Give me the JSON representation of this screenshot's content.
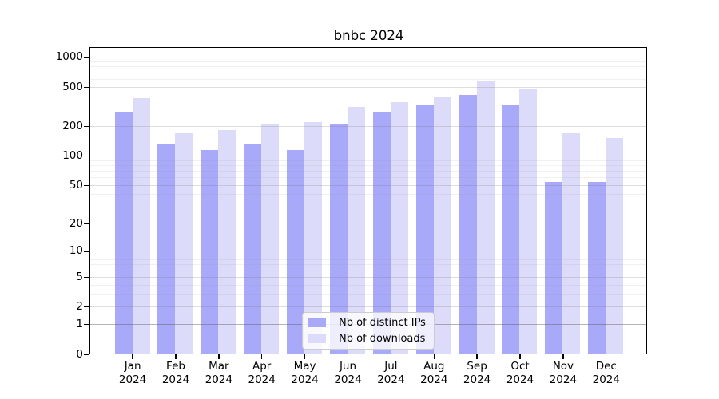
{
  "chart_data": {
    "type": "bar",
    "title": "bnbc 2024",
    "categories": [
      "Jan",
      "Feb",
      "Mar",
      "Apr",
      "May",
      "Jun",
      "Jul",
      "Aug",
      "Sep",
      "Oct",
      "Nov",
      "Dec"
    ],
    "year_label": "2024",
    "series": [
      {
        "name": "Nb of distinct IPs",
        "color": "#a9a9fa",
        "values": [
          285,
          132,
          116,
          134,
          116,
          215,
          285,
          330,
          420,
          330,
          55,
          55
        ]
      },
      {
        "name": "Nb of downloads",
        "color": "#dcdcfa",
        "values": [
          395,
          172,
          185,
          213,
          223,
          320,
          355,
          410,
          595,
          490,
          172,
          155
        ]
      }
    ],
    "yscale": "log1p",
    "ylim": [
      0,
      1270
    ],
    "yticks_labeled": [
      0,
      1,
      2,
      5,
      10,
      20,
      50,
      100,
      200,
      500,
      1000
    ],
    "yticks_major": [
      1,
      10,
      100,
      1000
    ],
    "yticks_minor_unlabeled": [
      3,
      4,
      6,
      7,
      8,
      9,
      30,
      40,
      60,
      70,
      80,
      90,
      300,
      400,
      600,
      700,
      800,
      900
    ],
    "grid": "horizontal",
    "legend_position": "lower center",
    "axis_color": "#000000",
    "grid_major_color": "#b3b3b3",
    "grid_mid_color": "#dedede",
    "grid_minor_color": "#ececec"
  }
}
